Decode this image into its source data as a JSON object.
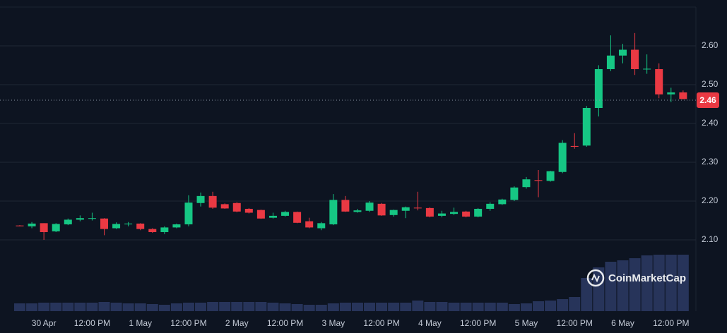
{
  "chart_data": {
    "type": "candlestick",
    "categories": [
      null,
      null,
      "30 Apr",
      null,
      null,
      null,
      "12:00 PM",
      null,
      null,
      null,
      "1 May",
      null,
      null,
      null,
      "12:00 PM",
      null,
      null,
      null,
      "2 May",
      null,
      null,
      null,
      "12:00 PM",
      null,
      null,
      null,
      "3 May",
      null,
      null,
      null,
      "12:00 PM",
      null,
      null,
      null,
      "4 May",
      null,
      null,
      null,
      "12:00 PM",
      null,
      null,
      null,
      "5 May",
      null,
      null,
      null,
      "12:00 PM",
      null,
      null,
      null,
      "6 May",
      null,
      null,
      null,
      "12:00 PM",
      null
    ],
    "open": [
      2.137,
      2.135,
      2.143,
      2.122,
      2.14,
      2.152,
      2.155,
      2.155,
      2.13,
      2.14,
      2.142,
      2.128,
      2.12,
      2.132,
      2.14,
      2.195,
      2.213,
      2.192,
      2.195,
      2.18,
      2.177,
      2.157,
      2.162,
      2.172,
      2.148,
      2.13,
      2.14,
      2.203,
      2.172,
      2.175,
      2.193,
      2.164,
      2.175,
      2.183,
      2.182,
      2.162,
      2.167,
      2.173,
      2.16,
      2.18,
      2.192,
      2.203,
      2.236,
      2.254,
      2.252,
      2.275,
      2.342,
      2.343,
      2.44,
      2.54,
      2.575,
      2.59,
      2.54,
      2.54,
      2.475,
      2.48
    ],
    "high": [
      2.138,
      2.146,
      2.143,
      2.143,
      2.155,
      2.163,
      2.17,
      2.156,
      2.145,
      2.146,
      2.143,
      2.13,
      2.135,
      2.142,
      2.215,
      2.222,
      2.224,
      2.194,
      2.197,
      2.182,
      2.178,
      2.17,
      2.175,
      2.173,
      2.157,
      2.146,
      2.218,
      2.213,
      2.18,
      2.2,
      2.195,
      2.178,
      2.186,
      2.224,
      2.184,
      2.175,
      2.183,
      2.175,
      2.182,
      2.197,
      2.206,
      2.238,
      2.262,
      2.28,
      2.278,
      2.357,
      2.375,
      2.445,
      2.55,
      2.627,
      2.605,
      2.633,
      2.578,
      2.555,
      2.492,
      2.485
    ],
    "low": [
      2.135,
      2.13,
      2.1,
      2.12,
      2.138,
      2.148,
      2.15,
      2.112,
      2.128,
      2.135,
      2.125,
      2.118,
      2.115,
      2.13,
      2.135,
      2.186,
      2.18,
      2.18,
      2.171,
      2.168,
      2.154,
      2.155,
      2.16,
      2.143,
      2.13,
      2.125,
      2.138,
      2.172,
      2.17,
      2.172,
      2.162,
      2.16,
      2.156,
      2.176,
      2.158,
      2.158,
      2.164,
      2.158,
      2.158,
      2.175,
      2.19,
      2.2,
      2.232,
      2.21,
      2.25,
      2.272,
      2.335,
      2.34,
      2.418,
      2.535,
      2.555,
      2.525,
      2.528,
      2.465,
      2.455,
      2.462
    ],
    "close": [
      2.136,
      2.142,
      2.12,
      2.141,
      2.152,
      2.156,
      2.156,
      2.128,
      2.141,
      2.142,
      2.128,
      2.12,
      2.132,
      2.14,
      2.196,
      2.213,
      2.183,
      2.181,
      2.173,
      2.17,
      2.155,
      2.162,
      2.172,
      2.144,
      2.132,
      2.143,
      2.203,
      2.173,
      2.176,
      2.196,
      2.163,
      2.177,
      2.184,
      2.182,
      2.16,
      2.168,
      2.172,
      2.16,
      2.18,
      2.193,
      2.204,
      2.235,
      2.256,
      2.252,
      2.277,
      2.35,
      2.34,
      2.44,
      2.54,
      2.575,
      2.59,
      2.54,
      2.541,
      2.475,
      2.48,
      2.463
    ],
    "volume": [
      11,
      11,
      12,
      12,
      12,
      12,
      12,
      13,
      12,
      11,
      11,
      10,
      9,
      11,
      12,
      12,
      13,
      13,
      13,
      13,
      13,
      12,
      11,
      10,
      9,
      9,
      11,
      12,
      12,
      12,
      12,
      12,
      12,
      15,
      13,
      13,
      12,
      12,
      12,
      12,
      12,
      10,
      11,
      14,
      15,
      17,
      20,
      47,
      62,
      70,
      72,
      75,
      79,
      80,
      80,
      80
    ],
    "volume_lim": [
      0,
      100
    ],
    "up_color": "#16c784",
    "down_color": "#ea3943",
    "volume_color": "#27345a",
    "ylim": [
      1.92,
      2.7
    ],
    "yticks": [
      {
        "value": 2.1,
        "label": "2.10"
      },
      {
        "value": 2.2,
        "label": "2.20"
      },
      {
        "value": 2.3,
        "label": "2.30"
      },
      {
        "value": 2.4,
        "label": "2.40"
      },
      {
        "value": 2.5,
        "label": "2.50"
      },
      {
        "value": 2.6,
        "label": "2.60"
      }
    ],
    "grid": true,
    "last_price": 2.46,
    "watermark": "CoinMarketCap"
  }
}
